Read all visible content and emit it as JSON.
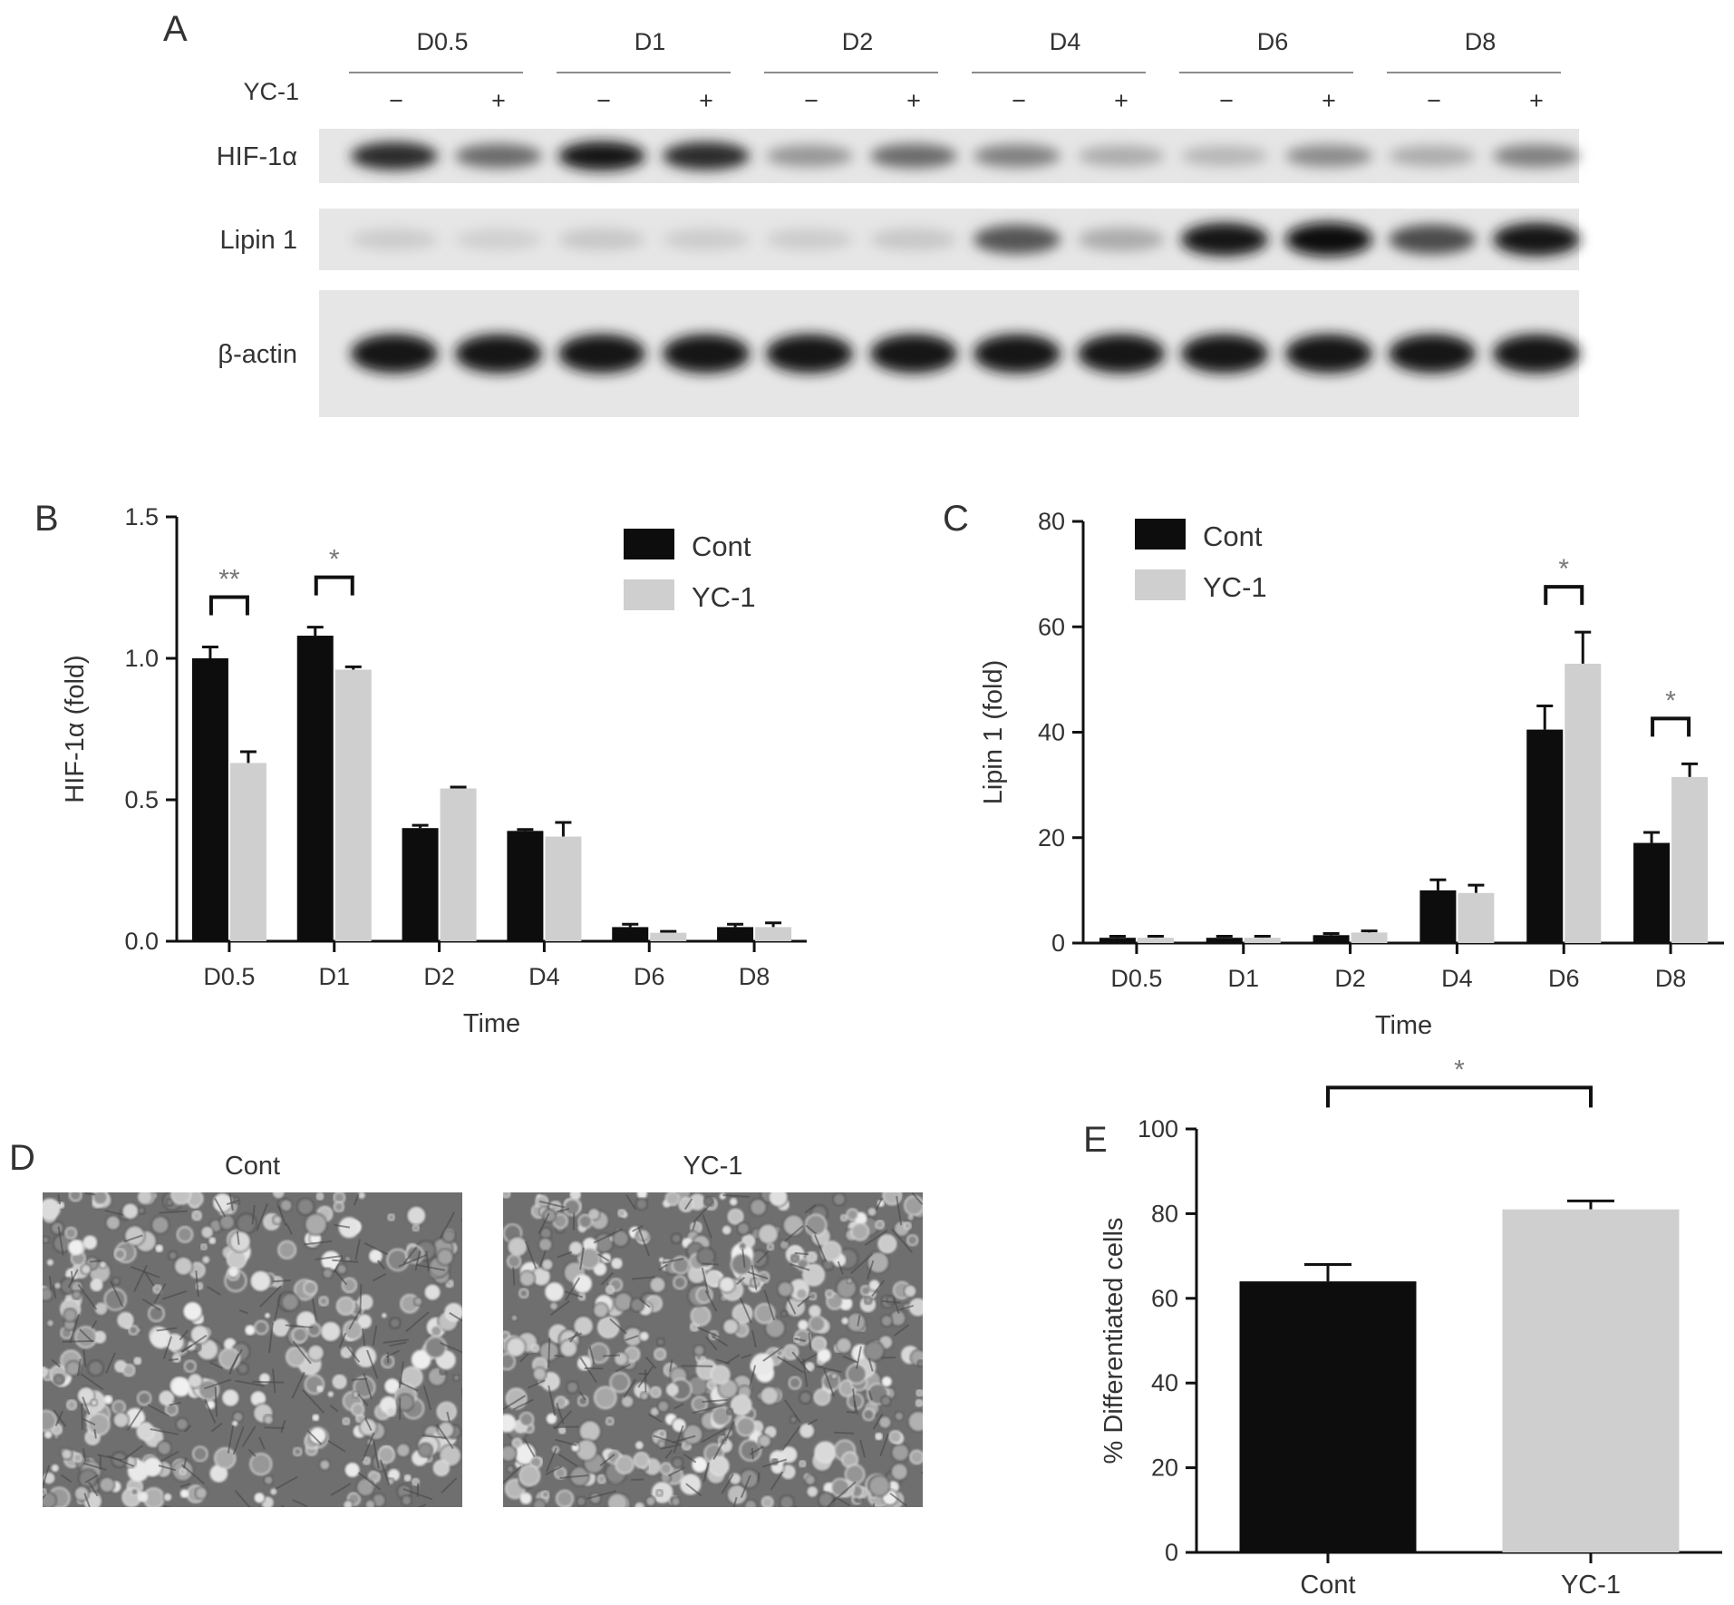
{
  "colors": {
    "cont": "#0d0d0d",
    "yc1": "#cfcfcf",
    "axis": "#111111",
    "sig_star": "#777777"
  },
  "panel_a": {
    "letter": "A",
    "days": [
      "D0.5",
      "D1",
      "D2",
      "D4",
      "D6",
      "D8"
    ],
    "treatment_label": "YC-1",
    "minus": "−",
    "plus": "+",
    "bands": [
      {
        "name": "HIF-1α",
        "intensity_cont": [
          0.85,
          0.95,
          0.35,
          0.45,
          0.2,
          0.25
        ],
        "intensity_yc1": [
          0.55,
          0.85,
          0.55,
          0.25,
          0.4,
          0.45
        ]
      },
      {
        "name": "Lipin 1",
        "intensity_cont": [
          0.1,
          0.12,
          0.1,
          0.65,
          0.95,
          0.7
        ],
        "intensity_yc1": [
          0.08,
          0.1,
          0.12,
          0.25,
          1.0,
          0.95
        ]
      },
      {
        "name": "β-actin",
        "intensity_cont": [
          0.95,
          0.95,
          0.95,
          0.95,
          0.95,
          0.95
        ],
        "intensity_yc1": [
          0.95,
          0.95,
          0.95,
          0.95,
          0.95,
          0.95
        ]
      }
    ]
  },
  "panel_d": {
    "letter": "D",
    "images": [
      {
        "label": "Cont",
        "density": 0.7
      },
      {
        "label": "YC-1",
        "density": 0.85
      }
    ]
  },
  "chart_data": [
    {
      "panel": "B",
      "type": "bar",
      "categories": [
        "D0.5",
        "D1",
        "D2",
        "D4",
        "D6",
        "D8"
      ],
      "series": [
        {
          "name": "Cont",
          "values": [
            1.0,
            1.08,
            0.4,
            0.39,
            0.05,
            0.05
          ],
          "errors": [
            0.04,
            0.03,
            0.01,
            0.005,
            0.01,
            0.01
          ]
        },
        {
          "name": "YC-1",
          "values": [
            0.63,
            0.96,
            0.54,
            0.37,
            0.03,
            0.05
          ],
          "errors": [
            0.04,
            0.01,
            0.005,
            0.05,
            0.005,
            0.015
          ]
        }
      ],
      "xlabel": "Time",
      "ylabel": "HIF-1α (fold)",
      "ylim": [
        0,
        1.5
      ],
      "yticks": [
        "0.0",
        "0.5",
        "1.0",
        "1.5"
      ],
      "yticks_values": [
        0,
        0.5,
        1.0,
        1.5
      ],
      "legend_position": "top-right",
      "significance": [
        {
          "category": 0,
          "label": "**"
        },
        {
          "category": 1,
          "label": "*"
        }
      ]
    },
    {
      "panel": "C",
      "type": "bar",
      "categories": [
        "D0.5",
        "D1",
        "D2",
        "D4",
        "D6",
        "D8"
      ],
      "series": [
        {
          "name": "Cont",
          "values": [
            1,
            1,
            1.5,
            10,
            40.5,
            19
          ],
          "errors": [
            0.3,
            0.3,
            0.3,
            2,
            4.5,
            2
          ]
        },
        {
          "name": "YC-1",
          "values": [
            1,
            1,
            2,
            9.5,
            53,
            31.5
          ],
          "errors": [
            0.3,
            0.3,
            0.3,
            1.5,
            6,
            2.5
          ]
        }
      ],
      "xlabel": "Time",
      "ylabel": "Lipin 1 (fold)",
      "ylim": [
        0,
        80
      ],
      "yticks": [
        "0",
        "20",
        "40",
        "60",
        "80"
      ],
      "yticks_values": [
        0,
        20,
        40,
        60,
        80
      ],
      "legend_position": "top-left",
      "significance": [
        {
          "category": 4,
          "label": "*"
        },
        {
          "category": 5,
          "label": "*"
        }
      ]
    },
    {
      "panel": "E",
      "type": "bar",
      "categories": [
        "Cont",
        "YC-1"
      ],
      "values": [
        64,
        81
      ],
      "errors": [
        4,
        2
      ],
      "ylabel": "% Differentiated cells",
      "ylim": [
        0,
        100
      ],
      "yticks": [
        "0",
        "20",
        "40",
        "60",
        "80",
        "100"
      ],
      "yticks_values": [
        0,
        20,
        40,
        60,
        80,
        100
      ],
      "significance": [
        {
          "between": [
            0,
            1
          ],
          "label": "*"
        }
      ]
    }
  ]
}
